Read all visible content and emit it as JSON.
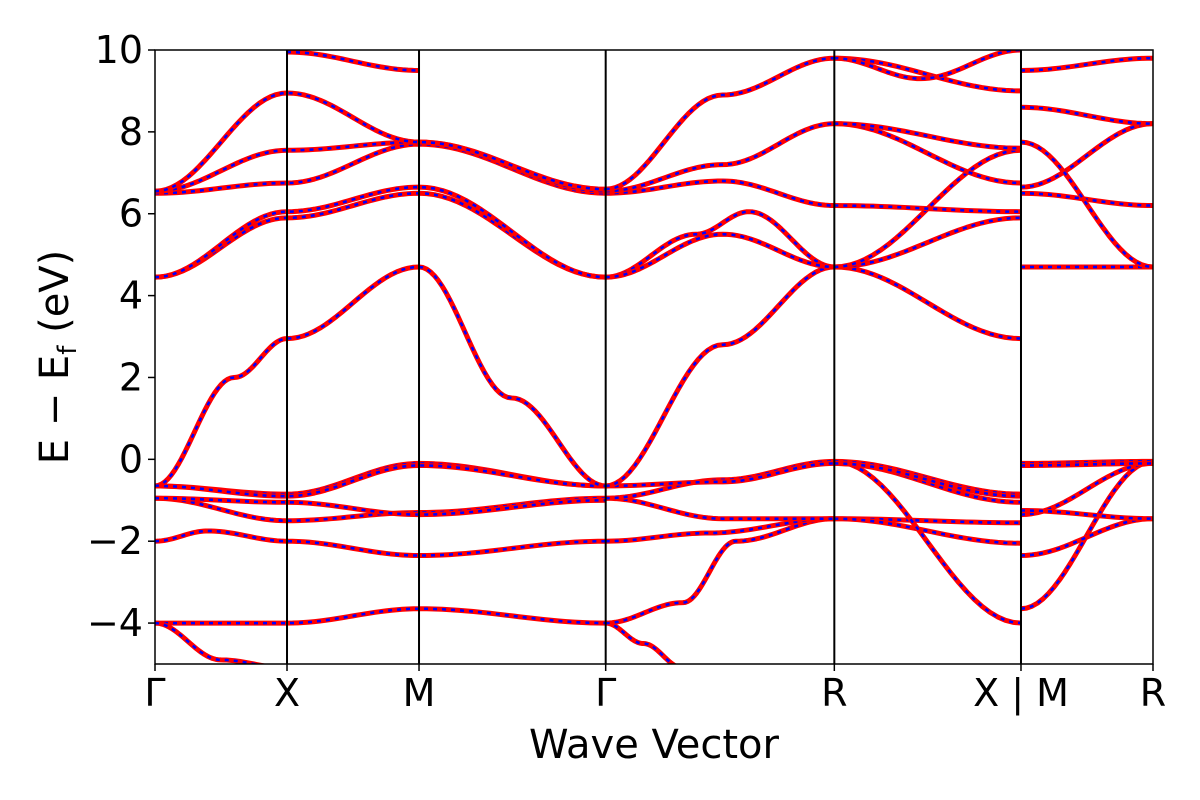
{
  "chart_data": {
    "type": "line",
    "title": "",
    "xlabel": "Wave Vector",
    "ylabel_main": "E − E",
    "ylabel_sub": "f",
    "ylabel_unit": " (eV)",
    "ylim": [
      -5,
      10
    ],
    "yticks": [
      -4,
      -2,
      0,
      2,
      4,
      6,
      8,
      10
    ],
    "ytick_labels": [
      "−4",
      "−2",
      "0",
      "2",
      "4",
      "6",
      "8",
      "10"
    ],
    "kpath_ticks": [
      {
        "k": 0.0,
        "label": "Γ"
      },
      {
        "k": 1.0,
        "label": "X"
      },
      {
        "k": 2.0,
        "label": "M"
      },
      {
        "k": 3.414,
        "label": "Γ"
      },
      {
        "k": 5.146,
        "label": "R"
      },
      {
        "k": 6.56,
        "label": "X | M"
      },
      {
        "k": 7.56,
        "label": "R"
      }
    ],
    "xlim": [
      0,
      7.56
    ],
    "grid": false,
    "colors": {
      "series_a": "#ff0000",
      "series_b": "#0000ff",
      "kline": "#000000"
    },
    "series": [
      {
        "line_style": "solid-red-with-blue-dashes",
        "bands": [
          {
            "k": [
              0,
              1,
              2,
              3.414
            ],
            "E": [
              -4.0,
              -4.0,
              -3.65,
              -4.0
            ]
          },
          {
            "k": [
              0,
              0.5,
              1
            ],
            "E": [
              -4.0,
              -4.9,
              -5.1
            ]
          },
          {
            "k": [
              0,
              0.4,
              1,
              2,
              3.414
            ],
            "E": [
              -2.0,
              -1.75,
              -2.0,
              -2.35,
              -2.0
            ]
          },
          {
            "k": [
              0,
              1,
              2,
              3.414
            ],
            "E": [
              -0.95,
              -1.5,
              -1.3,
              -0.95
            ]
          },
          {
            "k": [
              0,
              1,
              2,
              3.414
            ],
            "E": [
              -0.95,
              -1.05,
              -1.35,
              -1.0
            ]
          },
          {
            "k": [
              0,
              1,
              2,
              3.414
            ],
            "E": [
              -0.65,
              -0.85,
              -0.1,
              -0.65
            ]
          },
          {
            "k": [
              0,
              1,
              2,
              3.414
            ],
            "E": [
              -0.65,
              -0.9,
              -0.15,
              -0.65
            ]
          },
          {
            "k": [
              0,
              0.6,
              1,
              2,
              2.7,
              3.414
            ],
            "E": [
              -0.65,
              2.0,
              2.95,
              4.7,
              1.5,
              -0.65
            ]
          },
          {
            "k": [
              0,
              1,
              2,
              3.414
            ],
            "E": [
              4.45,
              5.9,
              6.5,
              4.45
            ]
          },
          {
            "k": [
              0,
              1,
              2,
              3.414
            ],
            "E": [
              4.45,
              6.05,
              6.65,
              4.45
            ]
          },
          {
            "k": [
              0,
              1,
              2,
              3.414
            ],
            "E": [
              6.5,
              6.75,
              7.7,
              6.5
            ]
          },
          {
            "k": [
              0,
              1,
              2,
              3.414
            ],
            "E": [
              6.55,
              7.55,
              7.75,
              6.55
            ]
          },
          {
            "k": [
              0,
              1,
              2,
              3.414
            ],
            "E": [
              6.55,
              8.95,
              7.75,
              6.6
            ]
          },
          {
            "k": [
              1,
              2
            ],
            "E": [
              9.95,
              9.5
            ]
          },
          {
            "k": [
              3.414,
              3.7,
              4.0
            ],
            "E": [
              -4.0,
              -4.5,
              -5.1
            ]
          },
          {
            "k": [
              3.414,
              4.0,
              4.4,
              5.146
            ],
            "E": [
              -4.0,
              -3.5,
              -2.0,
              -1.45
            ]
          },
          {
            "k": [
              3.414,
              4.2,
              5.146
            ],
            "E": [
              -2.0,
              -1.8,
              -1.45
            ]
          },
          {
            "k": [
              3.414,
              4.3,
              5.146
            ],
            "E": [
              -0.95,
              -1.45,
              -1.45
            ]
          },
          {
            "k": [
              3.414,
              4.3,
              5.146
            ],
            "E": [
              -0.95,
              -0.5,
              -0.05
            ]
          },
          {
            "k": [
              3.414,
              4.3,
              5.146
            ],
            "E": [
              -0.65,
              -0.55,
              -0.1
            ]
          },
          {
            "k": [
              3.414,
              4.3,
              5.146
            ],
            "E": [
              -0.65,
              2.8,
              4.7
            ]
          },
          {
            "k": [
              3.414,
              4.1,
              4.5,
              5.146
            ],
            "E": [
              4.45,
              5.5,
              6.05,
              4.7
            ]
          },
          {
            "k": [
              3.414,
              4.3,
              5.146
            ],
            "E": [
              4.45,
              5.5,
              4.7
            ]
          },
          {
            "k": [
              3.414,
              4.3,
              5.146
            ],
            "E": [
              6.5,
              6.8,
              6.2
            ]
          },
          {
            "k": [
              3.414,
              4.3,
              5.146
            ],
            "E": [
              6.55,
              7.2,
              8.2
            ]
          },
          {
            "k": [
              3.414,
              4.3,
              5.146
            ],
            "E": [
              6.6,
              8.9,
              9.8
            ]
          },
          {
            "k": [
              5.146,
              6.56
            ],
            "E": [
              -1.45,
              -1.55
            ]
          },
          {
            "k": [
              5.146,
              6.56
            ],
            "E": [
              -1.45,
              -2.05
            ]
          },
          {
            "k": [
              5.146,
              6.56
            ],
            "E": [
              -0.05,
              -4.0
            ]
          },
          {
            "k": [
              5.146,
              6.56
            ],
            "E": [
              -0.05,
              -0.85
            ]
          },
          {
            "k": [
              5.146,
              6.56
            ],
            "E": [
              -0.1,
              -1.05
            ]
          },
          {
            "k": [
              5.146,
              6.56
            ],
            "E": [
              -0.1,
              -0.9
            ]
          },
          {
            "k": [
              5.146,
              6.56
            ],
            "E": [
              4.7,
              2.95
            ]
          },
          {
            "k": [
              5.146,
              6.56
            ],
            "E": [
              4.7,
              5.9
            ]
          },
          {
            "k": [
              5.146,
              6.56
            ],
            "E": [
              4.7,
              7.55
            ]
          },
          {
            "k": [
              5.146,
              6.56
            ],
            "E": [
              6.2,
              6.05
            ]
          },
          {
            "k": [
              5.146,
              6.56
            ],
            "E": [
              8.2,
              6.75
            ]
          },
          {
            "k": [
              5.146,
              6.56
            ],
            "E": [
              8.2,
              7.6
            ]
          },
          {
            "k": [
              5.146,
              6.56
            ],
            "E": [
              9.8,
              9.0
            ]
          },
          {
            "k": [
              5.146,
              5.8,
              6.56
            ],
            "E": [
              9.8,
              9.3,
              10.0
            ]
          },
          {
            "k": [
              6.56,
              7.56
            ],
            "E": [
              -3.65,
              -0.05
            ]
          },
          {
            "k": [
              6.56,
              7.56
            ],
            "E": [
              -2.35,
              -1.45
            ]
          },
          {
            "k": [
              6.56,
              7.56
            ],
            "E": [
              -1.35,
              -0.1
            ]
          },
          {
            "k": [
              6.56,
              7.56
            ],
            "E": [
              -1.25,
              -1.45
            ]
          },
          {
            "k": [
              6.56,
              7.56
            ],
            "E": [
              -0.1,
              -0.05
            ]
          },
          {
            "k": [
              6.56,
              7.56
            ],
            "E": [
              -0.15,
              -0.1
            ]
          },
          {
            "k": [
              6.56,
              7.56
            ],
            "E": [
              4.7,
              4.7
            ]
          },
          {
            "k": [
              6.56,
              7.56
            ],
            "E": [
              6.5,
              6.2
            ]
          },
          {
            "k": [
              6.56,
              7.56
            ],
            "E": [
              6.65,
              8.2
            ]
          },
          {
            "k": [
              6.56,
              7.56
            ],
            "E": [
              7.75,
              4.7
            ]
          },
          {
            "k": [
              6.56,
              7.56
            ],
            "E": [
              8.6,
              8.2
            ]
          },
          {
            "k": [
              6.56,
              7.56
            ],
            "E": [
              9.5,
              9.8
            ]
          }
        ]
      }
    ]
  }
}
